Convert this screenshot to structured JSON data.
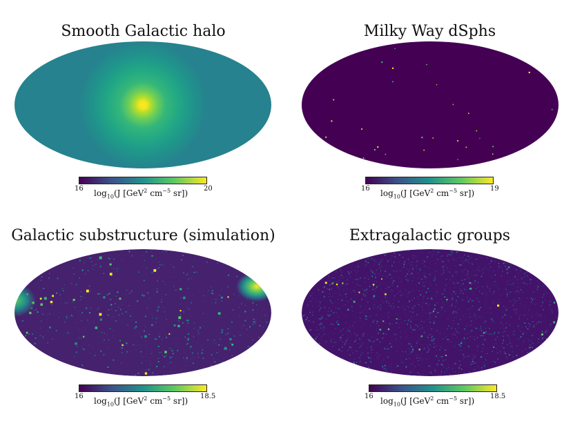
{
  "chart_data": [
    {
      "type": "heatmap",
      "projection": "mollweide",
      "title": "Smooth Galactic halo",
      "colormap": "viridis",
      "colorbar": {
        "min": 16,
        "max": 20,
        "min_label": "16",
        "max_label": "20",
        "label_pre": "log",
        "label_sub": "10",
        "label_mid": "(J  [GeV",
        "label_sup1": "2",
        "label_mid2": " cm",
        "label_sup2": "−5",
        "label_end": " sr])"
      },
      "pattern": "centered-gradient",
      "features": [
        {
          "description": "bright core at galactic center",
          "log10J": 20
        }
      ]
    },
    {
      "type": "heatmap",
      "projection": "mollweide",
      "title": "Milky Way dSphs",
      "colormap": "viridis",
      "colorbar": {
        "min": 16,
        "max": 19,
        "min_label": "16",
        "max_label": "19",
        "label_pre": "log",
        "label_sub": "10",
        "label_mid": "(J  [GeV",
        "label_sup1": "2",
        "label_mid2": " cm",
        "label_sup2": "−5",
        "label_end": " sr])"
      },
      "pattern": "sparse-points",
      "background_log10J": 16
    },
    {
      "type": "heatmap",
      "projection": "mollweide",
      "title": "Galactic substructure (simulation)",
      "colormap": "viridis",
      "colorbar": {
        "min": 16,
        "max": 18.5,
        "min_label": "16",
        "max_label": "18.5",
        "label_pre": "log",
        "label_sub": "10",
        "label_mid": "(J  [GeV",
        "label_sup1": "2",
        "label_mid2": " cm",
        "label_sup2": "−5",
        "label_end": " sr])"
      },
      "pattern": "scattered-subhalos",
      "background_log10J": 16.2
    },
    {
      "type": "heatmap",
      "projection": "mollweide",
      "title": "Extragalactic groups",
      "colormap": "viridis",
      "colorbar": {
        "min": 16,
        "max": 18.5,
        "min_label": "16",
        "max_label": "18.5",
        "label_pre": "log",
        "label_sub": "10",
        "label_mid": "(J  [GeV",
        "label_sup1": "2",
        "label_mid2": " cm",
        "label_sup2": "−5",
        "label_end": " sr])"
      },
      "pattern": "dense-clustered-points",
      "background_log10J": 16.1
    }
  ],
  "colors": {
    "viridis_0": "#440154",
    "viridis_25": "#3b528b",
    "viridis_50": "#21918c",
    "viridis_75": "#5ec962",
    "viridis_100": "#fde725"
  }
}
